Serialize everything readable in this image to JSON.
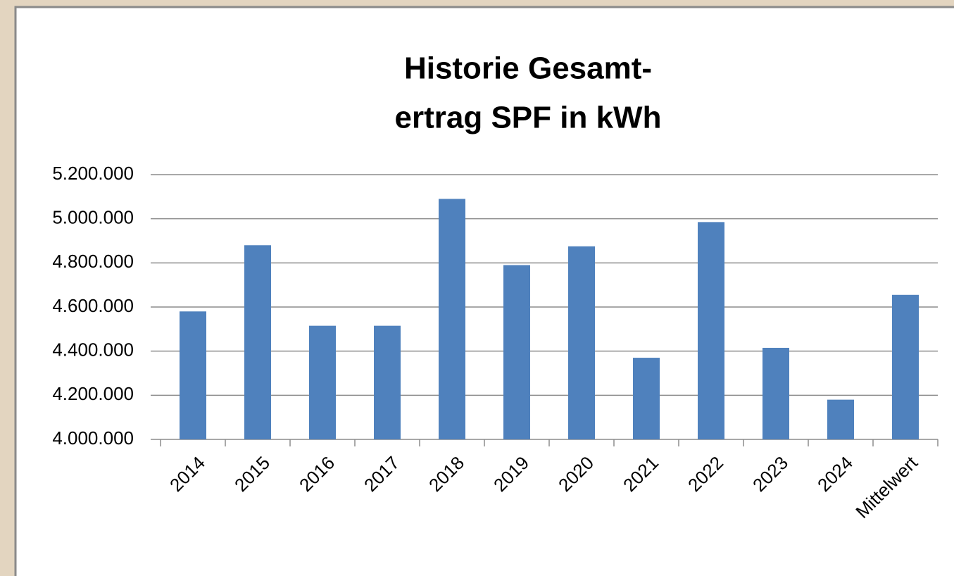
{
  "chart_data": {
    "type": "bar",
    "title": [
      "Historie Gesamt-",
      "ertrag SPF in kWh"
    ],
    "categories": [
      "2014",
      "2015",
      "2016",
      "2017",
      "2018",
      "2019",
      "2020",
      "2021",
      "2022",
      "2023",
      "2024",
      "Mittelwert"
    ],
    "values": [
      4580000,
      4880000,
      4515000,
      4515000,
      5090000,
      4790000,
      4875000,
      4370000,
      4985000,
      4415000,
      4180000,
      4655000
    ],
    "color": "#4f81bd",
    "ylim": [
      4000000,
      5200000
    ],
    "yticks": [
      {
        "value": 4000000,
        "label": "4.000.000"
      },
      {
        "value": 4200000,
        "label": "4.200.000"
      },
      {
        "value": 4400000,
        "label": "4.400.000"
      },
      {
        "value": 4600000,
        "label": "4.600.000"
      },
      {
        "value": 4800000,
        "label": "4.800.000"
      },
      {
        "value": 5000000,
        "label": "5.000.000"
      },
      {
        "value": 5200000,
        "label": "5.200.000"
      }
    ],
    "grid": true
  }
}
